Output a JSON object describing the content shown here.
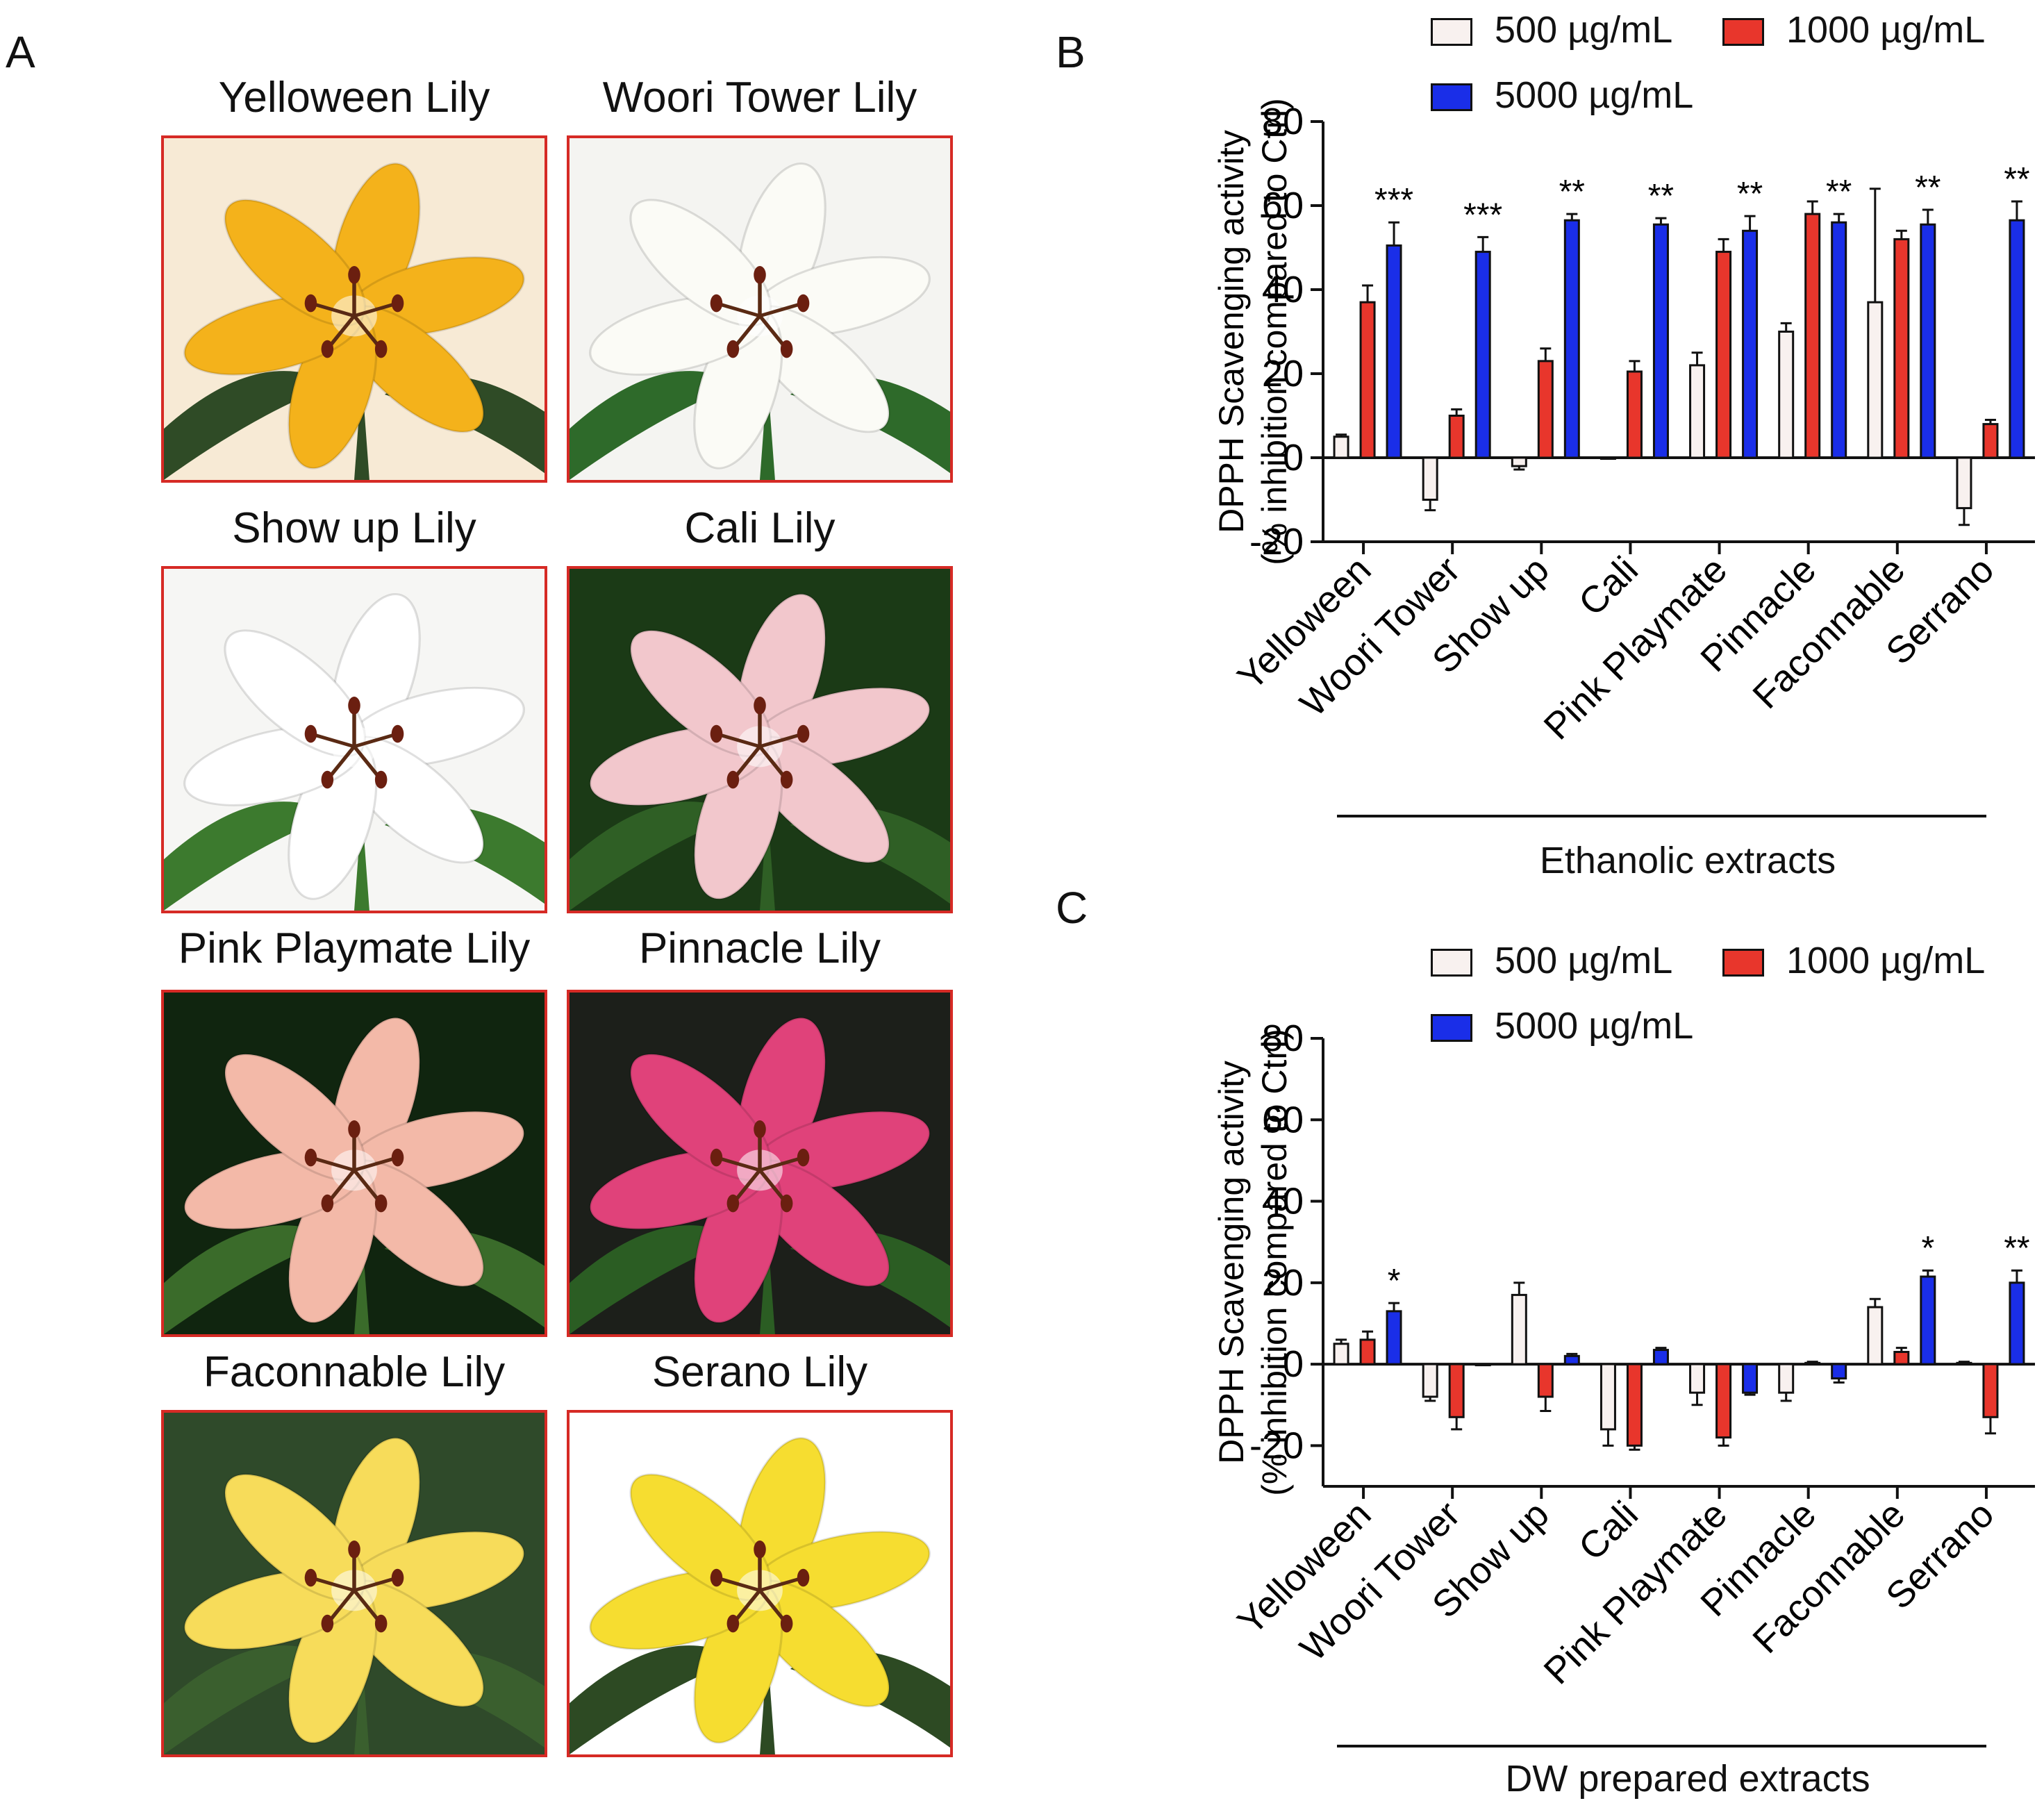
{
  "panels": {
    "a": "A",
    "b": "B",
    "c": "C"
  },
  "photos": [
    {
      "title": "Yelloween Lily",
      "icon": "yellow-lily-photo",
      "bg": "#f7ead5",
      "petal": "#f4b21b",
      "leaf": "#2f4b26"
    },
    {
      "title": "Woori Tower Lily",
      "icon": "white-lily-photo",
      "bg": "#f4f4f1",
      "petal": "#fbfbf6",
      "leaf": "#2e6a2a"
    },
    {
      "title": "Show up Lily",
      "icon": "white-lily-photo",
      "bg": "#f6f6f4",
      "petal": "#ffffff",
      "leaf": "#3c7a2e"
    },
    {
      "title": "Cali Lily",
      "icon": "pink-lily-photo",
      "bg": "#1b3a16",
      "petal": "#f2c7cc",
      "leaf": "#2f5f25"
    },
    {
      "title": "Pink Playmate Lily",
      "icon": "peach-daylily-photo",
      "bg": "#10250f",
      "petal": "#f3b9a8",
      "leaf": "#3a6b2a"
    },
    {
      "title": "Pinnacle Lily",
      "icon": "magenta-lily-photo",
      "bg": "#1c1f1a",
      "petal": "#e0427a",
      "leaf": "#2b5d23"
    },
    {
      "title": "Faconnable Lily",
      "icon": "yellow-lily-photo",
      "bg": "#2f4a2a",
      "petal": "#f7dc5a",
      "leaf": "#3a5f2e"
    },
    {
      "title": "Serano Lily",
      "icon": "yellow-lily-photo",
      "bg": "#ffffff",
      "petal": "#f6dd30",
      "leaf": "#2d4a23"
    }
  ],
  "legend": [
    {
      "label": "500 µg/mL",
      "color": "#f8f1ef"
    },
    {
      "label": "1000 µg/mL",
      "color": "#e8362c"
    },
    {
      "label": "5000 µg/mL",
      "color": "#1a2ee8"
    }
  ],
  "chart_data": [
    {
      "panel": "B",
      "type": "bar",
      "ylabel_line1": "DPPH Scavenging activity",
      "ylabel_line2": "(% inhibition compared to Ctrl)",
      "ylim": [
        -20,
        80
      ],
      "yticks": [
        "80",
        "60",
        "40",
        "20",
        "0",
        "-20"
      ],
      "categories": [
        "Yelloween",
        "Woori Tower",
        "Show up",
        "Cali",
        "Pink Playmate",
        "Pinnacle",
        "Faconnable",
        "Serrano"
      ],
      "group_label": "Ethanolic extracts",
      "series": [
        {
          "name": "500 µg/mL",
          "values": [
            5,
            -10,
            -2,
            0,
            22,
            30,
            37,
            -12
          ],
          "errors": [
            0.5,
            2.5,
            0.8,
            0,
            3,
            2,
            27,
            4
          ]
        },
        {
          "name": "1000 µg/mL",
          "values": [
            37,
            10,
            23,
            20.5,
            49,
            58,
            52,
            8
          ],
          "errors": [
            4,
            1.5,
            3,
            2.5,
            3,
            3,
            2,
            1
          ]
        },
        {
          "name": "5000 µg/mL",
          "values": [
            50.5,
            49,
            56.5,
            55.5,
            54,
            56,
            55.5,
            56.5
          ],
          "errors": [
            5.5,
            3.5,
            1.5,
            1.5,
            3.5,
            2,
            3.5,
            4.5
          ]
        }
      ],
      "annotations": [
        "***",
        "***",
        "**",
        "**",
        "**",
        "**",
        "**",
        "**"
      ]
    },
    {
      "panel": "C",
      "type": "bar",
      "ylabel_line1": "DPPH Scavenging activity",
      "ylabel_line2": "(% inhibition compared to Ctrl)",
      "ylim": [
        -30,
        80
      ],
      "yticks": [
        "80",
        "60",
        "40",
        "20",
        "0",
        "-20"
      ],
      "categories": [
        "Yelloween",
        "Woori Tower",
        "Show up",
        "Cali",
        "Pink Playmate",
        "Pinnacle",
        "Faconnable",
        "Serrano"
      ],
      "group_label": "DW prepared extracts",
      "series": [
        {
          "name": "500 µg/mL",
          "values": [
            5,
            -8,
            17,
            -16,
            -7,
            -7,
            14,
            0.3
          ],
          "errors": [
            1,
            1,
            3,
            4,
            3,
            2,
            2,
            0.3
          ]
        },
        {
          "name": "1000 µg/mL",
          "values": [
            6,
            -13,
            -8,
            -20,
            -18,
            0.3,
            3,
            -13
          ],
          "errors": [
            2,
            3,
            3.5,
            1,
            2,
            0.3,
            1,
            4
          ]
        },
        {
          "name": "5000 µg/mL",
          "values": [
            13,
            0,
            2,
            3.5,
            -7,
            -3.5,
            21.5,
            20
          ],
          "errors": [
            2,
            0,
            0.5,
            0.5,
            0.5,
            1,
            1.5,
            3
          ]
        }
      ],
      "annotations": [
        "*",
        "",
        "",
        "",
        "",
        "",
        "*",
        "**"
      ]
    }
  ]
}
